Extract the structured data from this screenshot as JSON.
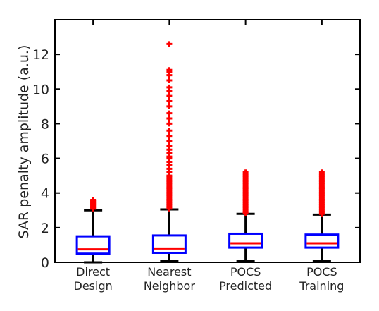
{
  "chart_data": {
    "type": "box",
    "ylabel": "SAR penalty amplitude (a.u.)",
    "ylim": [
      0,
      14
    ],
    "yticks": [
      "0",
      "2",
      "4",
      "6",
      "8",
      "10",
      "12"
    ],
    "categories": [
      [
        "Direct",
        "Design"
      ],
      [
        "Nearest",
        "Neighbor"
      ],
      [
        "POCS",
        "Predicted"
      ],
      [
        "POCS",
        "Training"
      ]
    ],
    "boxes": [
      {
        "whisker_low": 0.0,
        "q1": 0.5,
        "median": 0.75,
        "q3": 1.5,
        "whisker_high": 3.0,
        "outliers": [
          3.1,
          3.15,
          3.2,
          3.25,
          3.3,
          3.35,
          3.4,
          3.45,
          3.5,
          3.55,
          3.6
        ]
      },
      {
        "whisker_low": 0.1,
        "q1": 0.55,
        "median": 0.8,
        "q3": 1.55,
        "whisker_high": 3.05,
        "outliers": [
          3.1,
          3.2,
          3.3,
          3.4,
          3.5,
          3.6,
          3.7,
          3.8,
          3.9,
          4.0,
          4.1,
          4.2,
          4.3,
          4.4,
          4.5,
          4.6,
          4.7,
          4.8,
          4.9,
          5.0,
          5.2,
          5.4,
          5.6,
          5.8,
          6.0,
          6.1,
          6.3,
          6.5,
          6.7,
          7.0,
          7.3,
          7.6,
          8.0,
          8.3,
          8.6,
          9.0,
          9.3,
          9.6,
          9.9,
          10.1,
          10.5,
          10.8,
          11.0,
          11.1,
          12.6
        ]
      },
      {
        "whisker_low": 0.1,
        "q1": 0.85,
        "median": 1.1,
        "q3": 1.65,
        "whisker_high": 2.8,
        "outliers": [
          2.85,
          2.9,
          3.0,
          3.1,
          3.2,
          3.3,
          3.4,
          3.5,
          3.6,
          3.7,
          3.8,
          3.9,
          4.0,
          4.1,
          4.2,
          4.3,
          4.4,
          4.5,
          4.6,
          4.7,
          4.8,
          4.9,
          5.0,
          5.1,
          5.2
        ]
      },
      {
        "whisker_low": 0.1,
        "q1": 0.85,
        "median": 1.1,
        "q3": 1.6,
        "whisker_high": 2.75,
        "outliers": [
          2.8,
          2.9,
          3.0,
          3.1,
          3.2,
          3.3,
          3.4,
          3.5,
          3.6,
          3.7,
          3.8,
          3.9,
          4.0,
          4.1,
          4.2,
          4.3,
          4.4,
          4.5,
          4.6,
          4.7,
          4.8,
          4.9,
          5.0,
          5.1,
          5.2
        ]
      }
    ],
    "colors": {
      "box": "#0000ff",
      "median": "#ff0000",
      "whisker": "#000000",
      "outlier": "#ff0000"
    },
    "grid": false,
    "legend": false
  }
}
